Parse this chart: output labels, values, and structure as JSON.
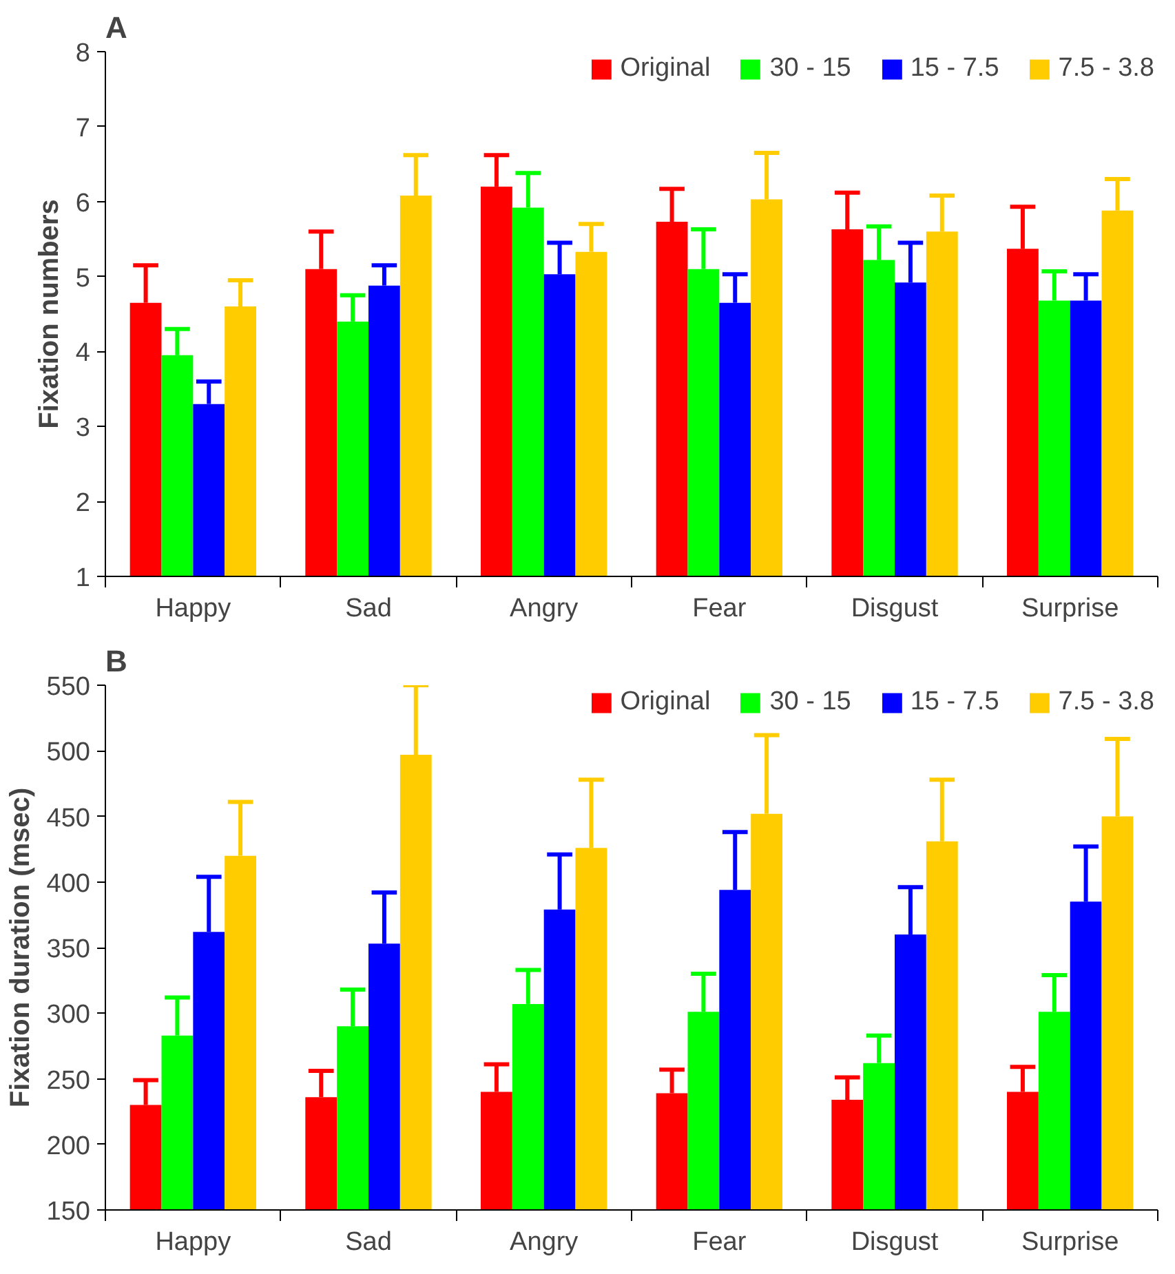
{
  "chart_data": [
    {
      "type": "bar",
      "title": "A",
      "ylabel": "Fixation numbers",
      "categories": [
        "Happy",
        "Sad",
        "Angry",
        "Fear",
        "Disgust",
        "Surprise"
      ],
      "ylim": [
        1,
        8
      ],
      "yticks": [
        1,
        2,
        3,
        4,
        5,
        6,
        7,
        8
      ],
      "grid": false,
      "legend": "top right",
      "series": [
        {
          "name": "Original",
          "color": "#ff0000",
          "values": [
            4.65,
            5.1,
            6.2,
            5.73,
            5.63,
            5.37
          ],
          "errors": [
            [
              4.65,
              5.15
            ],
            [
              5.1,
              5.6
            ],
            [
              6.2,
              6.62
            ],
            [
              5.73,
              6.17
            ],
            [
              5.63,
              6.12
            ],
            [
              5.37,
              5.93
            ]
          ]
        },
        {
          "name": "30 - 15",
          "color": "#00ff00",
          "values": [
            3.95,
            4.4,
            5.92,
            5.1,
            5.22,
            4.68
          ],
          "errors": [
            [
              3.95,
              4.3
            ],
            [
              4.4,
              4.75
            ],
            [
              5.92,
              6.38
            ],
            [
              5.1,
              5.63
            ],
            [
              5.22,
              5.67
            ],
            [
              4.68,
              5.07
            ]
          ]
        },
        {
          "name": "15 - 7.5",
          "color": "#0000ff",
          "values": [
            3.3,
            4.88,
            5.03,
            4.65,
            4.92,
            4.68
          ],
          "errors": [
            [
              3.3,
              3.6
            ],
            [
              4.88,
              5.15
            ],
            [
              5.03,
              5.45
            ],
            [
              4.65,
              5.03
            ],
            [
              4.92,
              5.45
            ],
            [
              4.68,
              5.03
            ]
          ]
        },
        {
          "name": "7.5 - 3.8",
          "color": "#ffcc00",
          "values": [
            4.6,
            6.08,
            5.33,
            6.03,
            5.6,
            5.88
          ],
          "errors": [
            [
              4.6,
              4.95
            ],
            [
              6.08,
              6.62
            ],
            [
              5.33,
              5.7
            ],
            [
              6.03,
              6.65
            ],
            [
              5.6,
              6.08
            ],
            [
              5.88,
              6.3
            ]
          ]
        }
      ]
    },
    {
      "type": "bar",
      "title": "B",
      "ylabel": "Fixation duration (msec)",
      "categories": [
        "Happy",
        "Sad",
        "Angry",
        "Fear",
        "Disgust",
        "Surprise"
      ],
      "ylim": [
        150,
        550
      ],
      "yticks": [
        150,
        200,
        250,
        300,
        350,
        400,
        450,
        500,
        550
      ],
      "grid": false,
      "legend": "top right",
      "series": [
        {
          "name": "Original",
          "color": "#ff0000",
          "values": [
            230,
            236,
            240,
            239,
            234,
            240
          ],
          "errors": [
            [
              230,
              249
            ],
            [
              236,
              256
            ],
            [
              240,
              261
            ],
            [
              239,
              257
            ],
            [
              234,
              251
            ],
            [
              240,
              259
            ]
          ]
        },
        {
          "name": "30 - 15",
          "color": "#00ff00",
          "values": [
            283,
            290,
            307,
            301,
            262,
            301
          ],
          "errors": [
            [
              283,
              312
            ],
            [
              290,
              318
            ],
            [
              307,
              333
            ],
            [
              301,
              330
            ],
            [
              262,
              283
            ],
            [
              301,
              329
            ]
          ]
        },
        {
          "name": "15 - 7.5",
          "color": "#0000ff",
          "values": [
            362,
            353,
            379,
            394,
            360,
            385
          ],
          "errors": [
            [
              362,
              404
            ],
            [
              353,
              392
            ],
            [
              379,
              421
            ],
            [
              394,
              438
            ],
            [
              360,
              396
            ],
            [
              385,
              427
            ]
          ]
        },
        {
          "name": "7.5 - 3.8",
          "color": "#ffcc00",
          "values": [
            420,
            497,
            426,
            452,
            431,
            450
          ],
          "errors": [
            [
              420,
              461
            ],
            [
              497,
              550
            ],
            [
              426,
              478
            ],
            [
              452,
              512
            ],
            [
              431,
              478
            ],
            [
              450,
              509
            ]
          ]
        }
      ]
    }
  ]
}
